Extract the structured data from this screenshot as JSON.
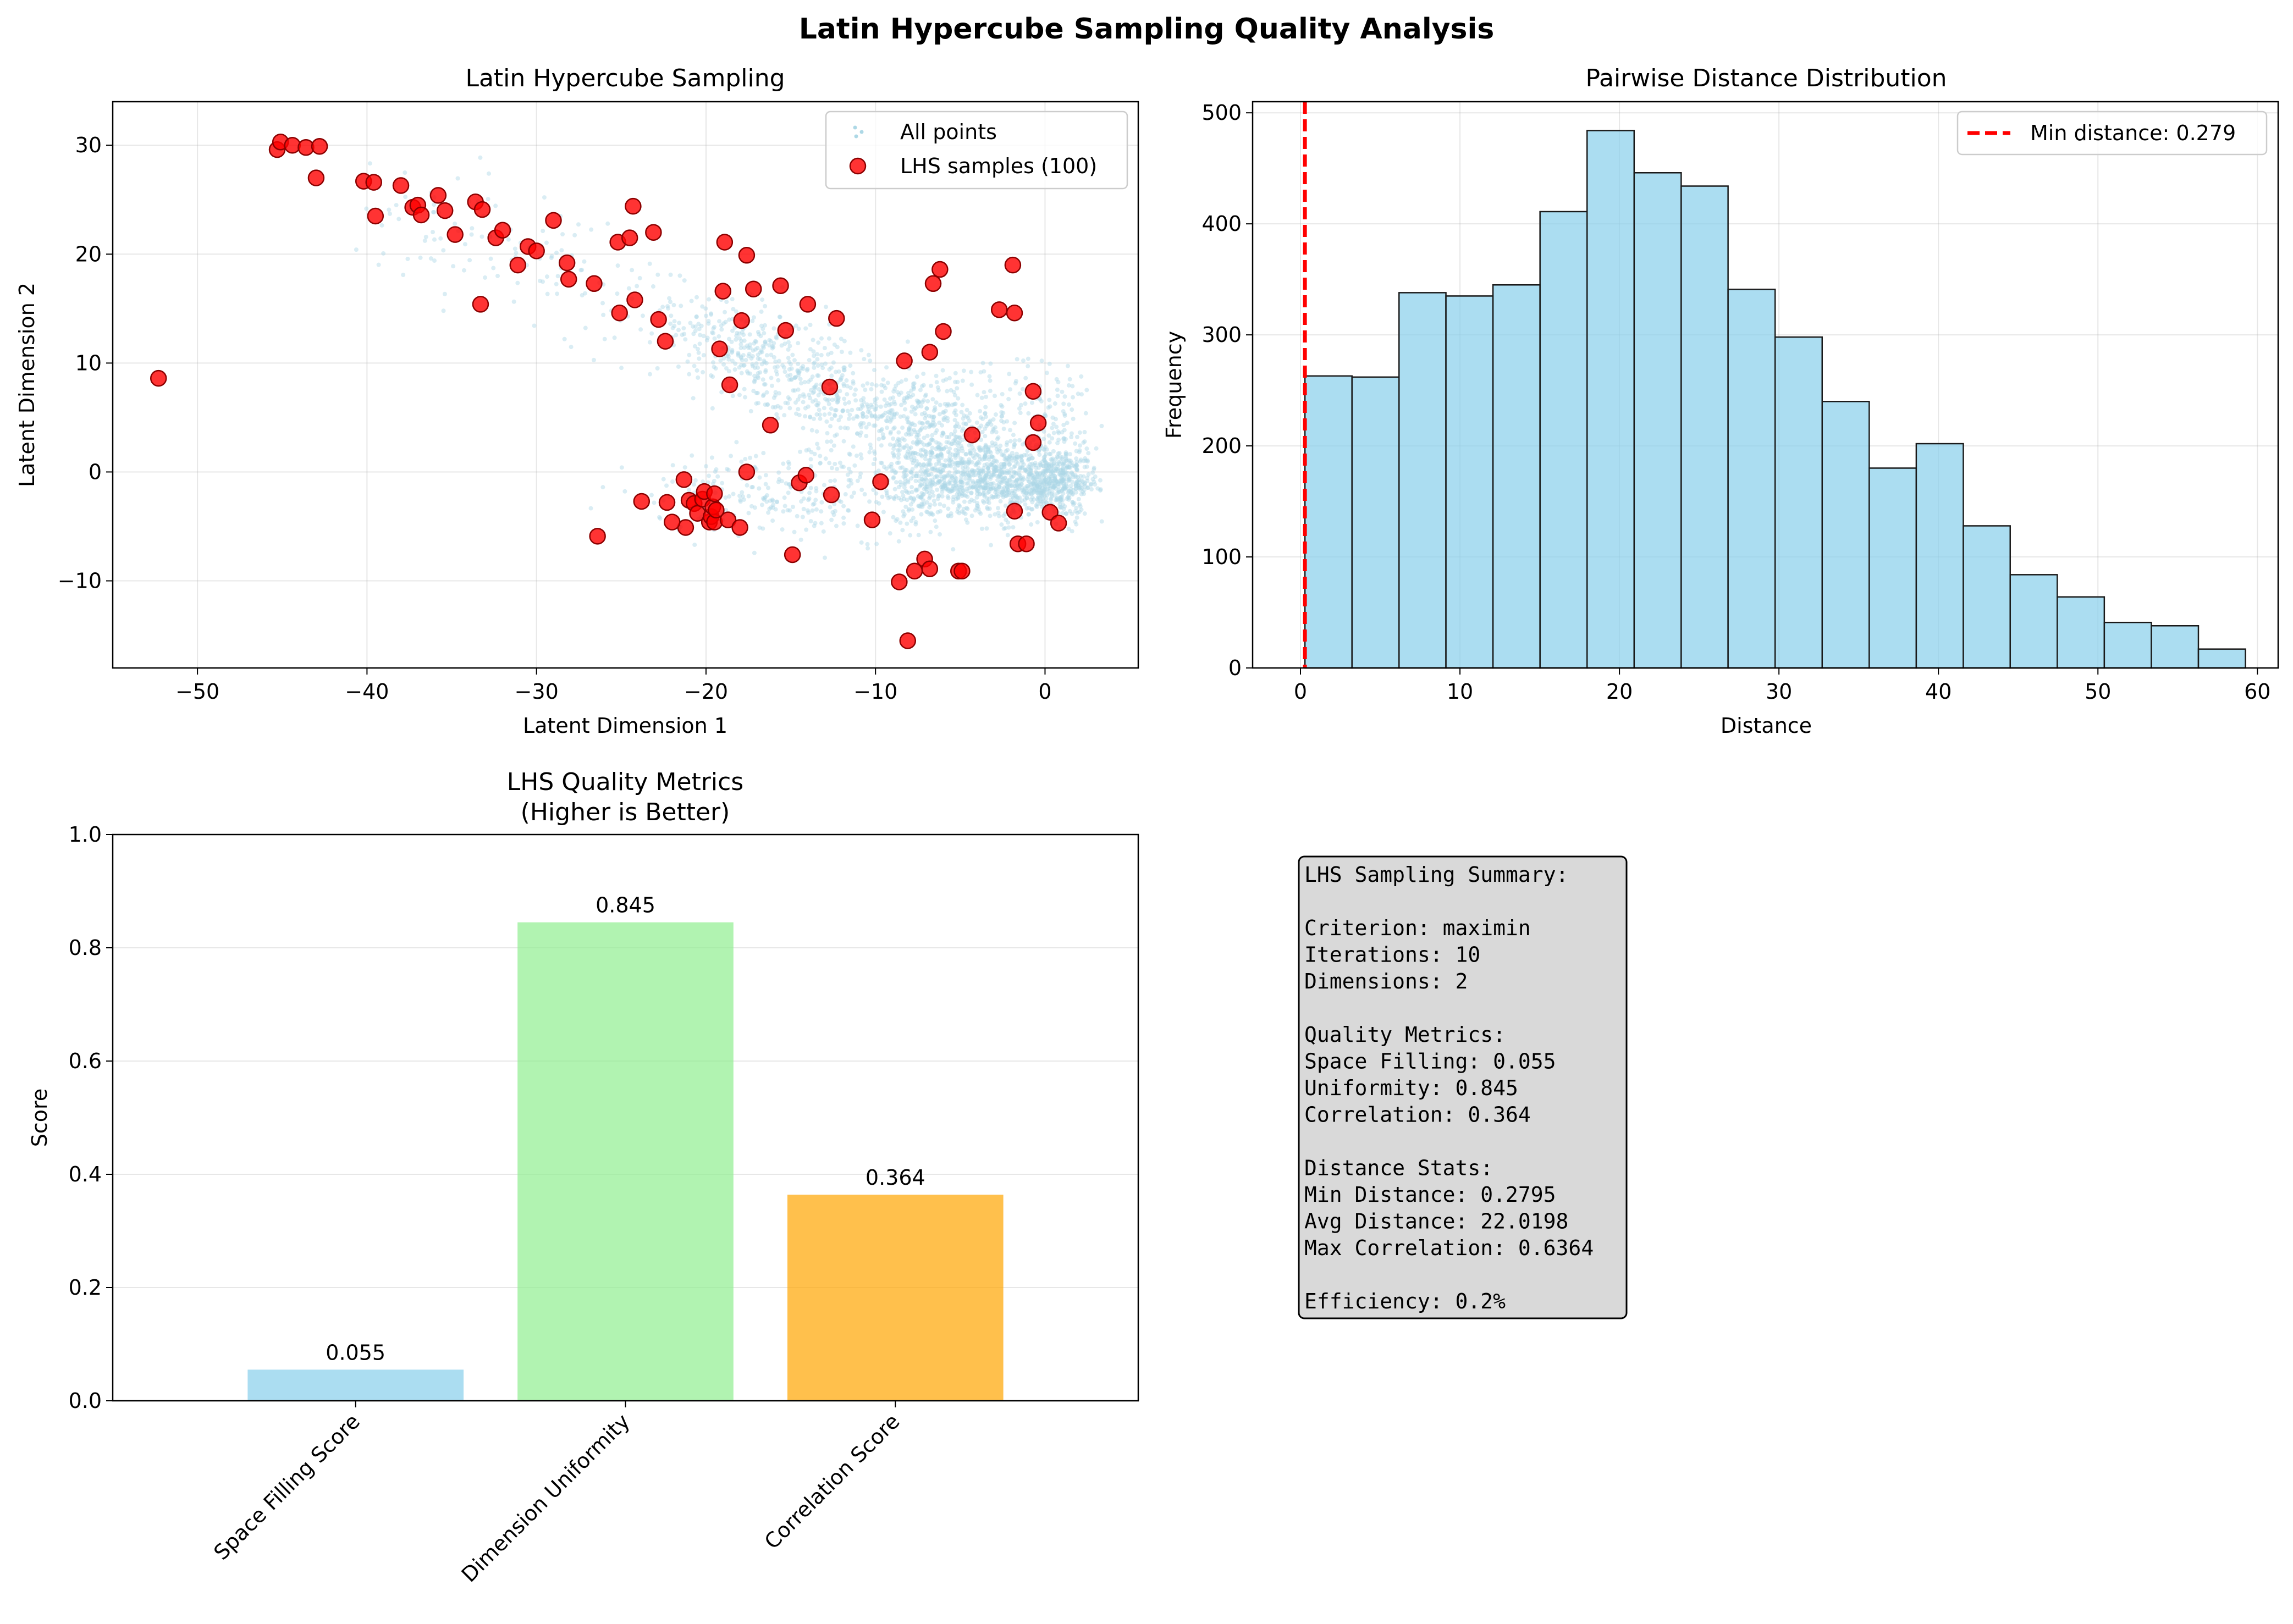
{
  "figure": {
    "title": "Latin Hypercube Sampling Quality Analysis"
  },
  "chart_data": [
    {
      "type": "scatter",
      "title": "Latin Hypercube Sampling",
      "xlabel": "Latent Dimension 1",
      "ylabel": "Latent Dimension 2",
      "xlim": [
        -55,
        5.5
      ],
      "ylim": [
        -18,
        34
      ],
      "xticks": [
        -50,
        -40,
        -30,
        -20,
        -10,
        0
      ],
      "yticks": [
        -10,
        0,
        10,
        20,
        30
      ],
      "grid": true,
      "legend": "top-right",
      "legend_entries": [
        "All points",
        "LHS samples (100)"
      ],
      "colors": {
        "all_points": "#add8e6",
        "lhs_face": "#ff0000",
        "lhs_edge": "#8b0000"
      },
      "lhs_samples": {
        "x": [
          -52.3,
          -45.3,
          -45.1,
          -44.4,
          -43.6,
          -42.8,
          -43.0,
          -40.2,
          -39.6,
          -39.5,
          -38.0,
          -37.3,
          -37.0,
          -36.8,
          -35.8,
          -35.4,
          -34.8,
          -33.6,
          -33.2,
          -33.3,
          -32.4,
          -32.0,
          -31.1,
          -30.5,
          -30.0,
          -29.0,
          -28.2,
          -28.1,
          -26.6,
          -26.4,
          -25.2,
          -25.1,
          -24.5,
          -24.3,
          -24.2,
          -23.8,
          -23.1,
          -22.8,
          -22.4,
          -22.3,
          -21.3,
          -21.2,
          -21.0,
          -20.7,
          -20.5,
          -20.2,
          -20.1,
          -19.8,
          -19.7,
          -19.6,
          -19.5,
          -19.5,
          -19.2,
          -19.0,
          -18.9,
          -18.6,
          -18.7,
          -18.0,
          -17.9,
          -17.6,
          -17.6,
          -17.2,
          -16.2,
          -15.6,
          -15.3,
          -14.9,
          -14.5,
          -14.1,
          -14.0,
          -12.7,
          -12.6,
          -12.3,
          -10.2,
          -9.7,
          -8.3,
          -8.6,
          -8.1,
          -7.7,
          -7.1,
          -6.8,
          -6.8,
          -6.6,
          -6.2,
          -6.0,
          -5.1,
          -4.9,
          -4.3,
          -2.7,
          -1.9,
          -1.8,
          -1.8,
          -1.6,
          -1.1,
          -0.7,
          -0.7,
          -0.4,
          0.3,
          0.8,
          -22.0,
          -19.4
        ],
        "y": [
          8.6,
          29.6,
          30.3,
          30.0,
          29.8,
          29.9,
          27.0,
          26.7,
          26.6,
          23.5,
          26.3,
          24.3,
          24.5,
          23.6,
          25.4,
          24.0,
          21.8,
          24.8,
          24.1,
          15.4,
          21.5,
          22.2,
          19.0,
          20.7,
          20.3,
          23.1,
          19.2,
          17.7,
          17.3,
          -5.9,
          21.1,
          14.6,
          21.5,
          24.4,
          15.8,
          -2.7,
          22.0,
          14.0,
          12.0,
          -2.8,
          -0.7,
          -5.1,
          -2.6,
          -2.9,
          -3.8,
          -2.5,
          -1.8,
          -4.6,
          -4.1,
          -3.2,
          -2.0,
          -4.6,
          11.3,
          16.6,
          21.1,
          8.0,
          -4.4,
          -5.1,
          13.9,
          0.0,
          19.9,
          16.8,
          4.3,
          17.1,
          13.0,
          -7.6,
          -1.0,
          -0.3,
          15.4,
          7.8,
          -2.1,
          14.1,
          -4.4,
          -0.9,
          10.2,
          -10.1,
          -15.5,
          -9.1,
          -8.0,
          11.0,
          -8.9,
          17.3,
          18.6,
          12.9,
          -9.1,
          -9.1,
          3.4,
          14.9,
          19.0,
          14.6,
          -3.6,
          -6.6,
          -6.6,
          7.4,
          2.7,
          4.5,
          -3.7,
          -4.7,
          -4.6,
          -3.5
        ]
      }
    },
    {
      "type": "bar",
      "title": "Pairwise Distance Distribution",
      "xlabel": "Distance",
      "ylabel": "Frequency",
      "xlim": [
        -3,
        61.3
      ],
      "ylim": [
        0,
        510
      ],
      "xticks": [
        0,
        10,
        20,
        30,
        40,
        50,
        60
      ],
      "yticks": [
        0,
        100,
        200,
        300,
        400,
        500
      ],
      "grid": true,
      "legend": "top-right",
      "bin_edges": [
        0.28,
        3.23,
        6.18,
        9.12,
        12.07,
        15.02,
        17.97,
        20.92,
        23.87,
        26.81,
        29.76,
        32.71,
        35.66,
        38.61,
        41.56,
        44.5,
        47.45,
        50.4,
        53.35,
        56.3,
        59.25
      ],
      "values": [
        263,
        262,
        338,
        335,
        345,
        411,
        484,
        446,
        434,
        341,
        298,
        240,
        180,
        202,
        128,
        84,
        64,
        41,
        38,
        17
      ],
      "min_distance": 0.279,
      "min_line_label": "Min distance: 0.279",
      "colors": {
        "bars": "#87ceeb",
        "edge": "#1a1a1a",
        "min_line": "#ff0000"
      }
    },
    {
      "type": "bar",
      "title_lines": [
        "LHS Quality Metrics",
        "(Higher is Better)"
      ],
      "xlabel": "",
      "ylabel": "Score",
      "ylim": [
        0,
        1.0
      ],
      "yticks": [
        "0.0",
        "0.2",
        "0.4",
        "0.6",
        "0.8",
        "1.0"
      ],
      "grid": true,
      "categories": [
        "Space Filling Score",
        "Dimension Uniformity",
        "Correlation Score"
      ],
      "values": [
        0.055,
        0.845,
        0.364
      ],
      "value_labels": [
        "0.055",
        "0.845",
        "0.364"
      ],
      "colors": [
        "#87ceeb",
        "#90ee90",
        "#ffa500"
      ]
    }
  ],
  "summary": {
    "lines": [
      "LHS Sampling Summary:",
      "",
      "Criterion: maximin",
      "Iterations: 10",
      "Dimensions: 2",
      "",
      "Quality Metrics:",
      "Space Filling: 0.055",
      "Uniformity: 0.845",
      "Correlation: 0.364",
      "",
      "Distance Stats:",
      "Min Distance: 0.2795",
      "Avg Distance: 22.0198",
      "Max Correlation: 0.6364",
      "",
      "Efficiency: 0.2%"
    ],
    "colors": {
      "background": "#d9d9d9",
      "border": "#000000"
    }
  }
}
